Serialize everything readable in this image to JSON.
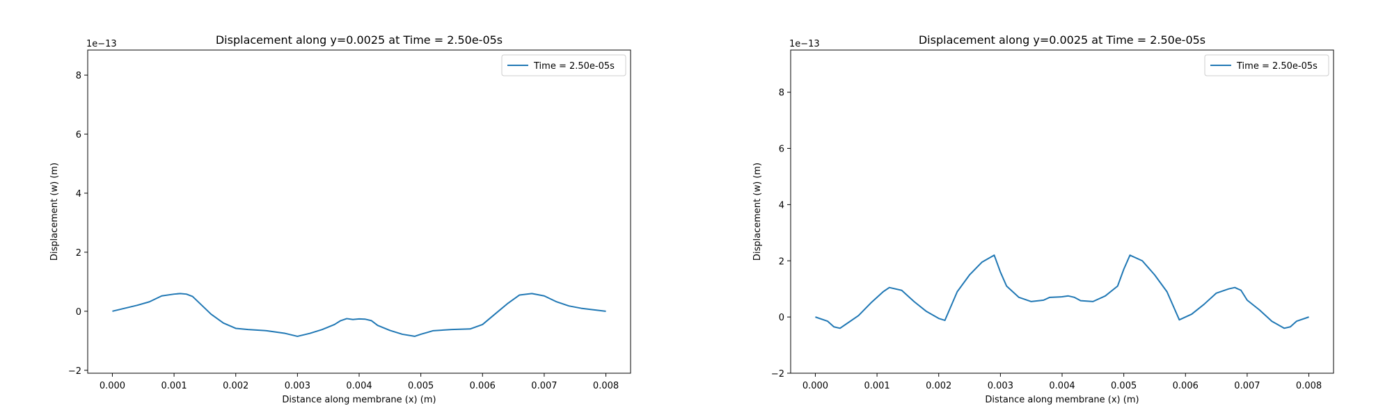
{
  "chart_data": [
    {
      "type": "line",
      "title": "Displacement along y=0.0025 at Time = 2.50e-05s",
      "xlabel": "Distance along membrane (x) (m)",
      "ylabel": "Displacement (w) (m)",
      "offset_text": "1e−13",
      "xlim": [
        -0.0004,
        0.0084
      ],
      "ylim": [
        -2.1,
        8.85
      ],
      "xticks": [
        0.0,
        0.001,
        0.002,
        0.003,
        0.004,
        0.005,
        0.006,
        0.007,
        0.008
      ],
      "xtick_labels": [
        "0.000",
        "0.001",
        "0.002",
        "0.003",
        "0.004",
        "0.005",
        "0.006",
        "0.007",
        "0.008"
      ],
      "yticks": [
        -2,
        0,
        2,
        4,
        6,
        8
      ],
      "ytick_labels": [
        "−2",
        "0",
        "2",
        "4",
        "6",
        "8"
      ],
      "legend_position": "top-right",
      "grid": false,
      "color": "#1f77b4",
      "series": [
        {
          "name": "Time = 2.50e-05s",
          "x": [
            0.0,
            0.0002,
            0.0004,
            0.0006,
            0.0008,
            0.001,
            0.0011,
            0.0012,
            0.0013,
            0.0014,
            0.0016,
            0.0018,
            0.002,
            0.0022,
            0.0025,
            0.0028,
            0.0029,
            0.003,
            0.0031,
            0.0032,
            0.0034,
            0.0036,
            0.0037,
            0.0038,
            0.0039,
            0.004,
            0.0041,
            0.0042,
            0.0043,
            0.0045,
            0.0047,
            0.0049,
            0.005,
            0.0051,
            0.0052,
            0.0055,
            0.0058,
            0.006,
            0.0062,
            0.0064,
            0.0066,
            0.0068,
            0.007,
            0.0072,
            0.0074,
            0.0076,
            0.0078,
            0.008
          ],
          "values": [
            0.0,
            0.1,
            0.2,
            0.32,
            0.52,
            0.58,
            0.6,
            0.58,
            0.5,
            0.3,
            -0.1,
            -0.4,
            -0.58,
            -0.62,
            -0.66,
            -0.75,
            -0.8,
            -0.85,
            -0.8,
            -0.75,
            -0.62,
            -0.45,
            -0.32,
            -0.25,
            -0.28,
            -0.26,
            -0.27,
            -0.32,
            -0.48,
            -0.65,
            -0.78,
            -0.85,
            -0.78,
            -0.72,
            -0.66,
            -0.62,
            -0.6,
            -0.45,
            -0.1,
            0.25,
            0.55,
            0.6,
            0.52,
            0.32,
            0.18,
            0.1,
            0.05,
            0.0
          ]
        }
      ]
    },
    {
      "type": "line",
      "title": "Displacement along y=0.0025 at Time = 2.50e-05s",
      "xlabel": "Distance along membrane (x) (m)",
      "ylabel": "Displacement (w) (m)",
      "offset_text": "1e−13",
      "xlim": [
        -0.0004,
        0.0084
      ],
      "ylim": [
        -2.0,
        9.5
      ],
      "xticks": [
        0.0,
        0.001,
        0.002,
        0.003,
        0.004,
        0.005,
        0.006,
        0.007,
        0.008
      ],
      "xtick_labels": [
        "0.000",
        "0.001",
        "0.002",
        "0.003",
        "0.004",
        "0.005",
        "0.006",
        "0.007",
        "0.008"
      ],
      "yticks": [
        -2,
        0,
        2,
        4,
        6,
        8
      ],
      "ytick_labels": [
        "−2",
        "0",
        "2",
        "4",
        "6",
        "8"
      ],
      "legend_position": "top-right",
      "grid": false,
      "color": "#1f77b4",
      "series": [
        {
          "name": "Time = 2.50e-05s",
          "x": [
            0.0,
            0.0002,
            0.0003,
            0.0004,
            0.0005,
            0.0007,
            0.0009,
            0.0011,
            0.0012,
            0.0014,
            0.0016,
            0.0018,
            0.002,
            0.0021,
            0.0023,
            0.0025,
            0.0027,
            0.0029,
            0.003,
            0.0031,
            0.0033,
            0.0035,
            0.0037,
            0.0038,
            0.004,
            0.0041,
            0.0042,
            0.0043,
            0.0045,
            0.0047,
            0.0049,
            0.005,
            0.0051,
            0.0053,
            0.0055,
            0.0057,
            0.0059,
            0.0061,
            0.0063,
            0.0065,
            0.0067,
            0.0068,
            0.0069,
            0.007,
            0.0072,
            0.0074,
            0.0076,
            0.0077,
            0.0078,
            0.008
          ],
          "values": [
            0.0,
            -0.15,
            -0.35,
            -0.4,
            -0.25,
            0.05,
            0.5,
            0.9,
            1.05,
            0.95,
            0.55,
            0.2,
            -0.05,
            -0.12,
            0.9,
            1.5,
            1.95,
            2.2,
            1.6,
            1.1,
            0.7,
            0.55,
            0.6,
            0.7,
            0.72,
            0.75,
            0.7,
            0.58,
            0.55,
            0.75,
            1.1,
            1.7,
            2.2,
            2.0,
            1.5,
            0.9,
            -0.1,
            0.1,
            0.45,
            0.85,
            1.0,
            1.05,
            0.95,
            0.6,
            0.25,
            -0.15,
            -0.4,
            -0.35,
            -0.15,
            0.0
          ]
        }
      ]
    }
  ]
}
